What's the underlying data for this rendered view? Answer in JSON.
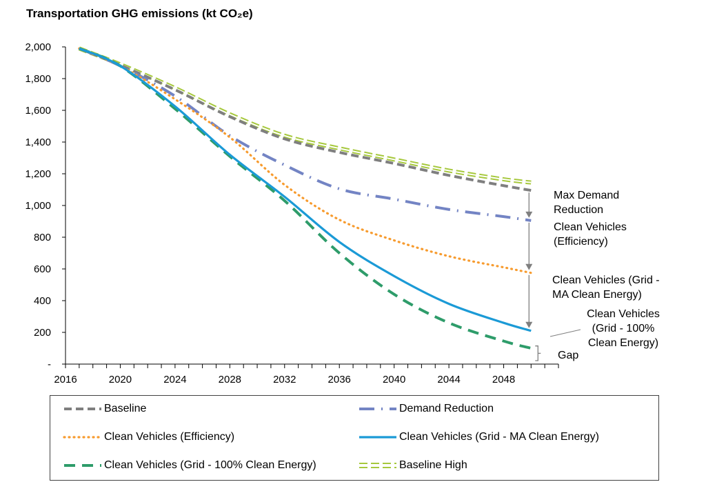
{
  "title": "Transportation GHG emissions (kt CO₂e)",
  "chart_data": {
    "type": "line",
    "title": "Transportation GHG emissions (kt CO₂e)",
    "xlim": [
      2016,
      2052
    ],
    "ylim": [
      0,
      2000
    ],
    "x_ticks": [
      "2016",
      "2020",
      "2024",
      "2028",
      "2032",
      "2036",
      "2040",
      "2044",
      "2048"
    ],
    "y_ticks": [
      "-",
      "200",
      "400",
      "600",
      "800",
      "1,000",
      "1,200",
      "1,400",
      "1,600",
      "1,800",
      "2,000"
    ],
    "grid": false,
    "legend_position": "bottom",
    "series": [
      {
        "name": "Baseline",
        "color": "#7f7f7f",
        "style": "dashed",
        "x": [
          2017,
          2020,
          2024,
          2028,
          2032,
          2036,
          2040,
          2044,
          2048,
          2050
        ],
        "y": [
          1990,
          1885,
          1730,
          1560,
          1420,
          1335,
          1265,
          1190,
          1125,
          1095
        ]
      },
      {
        "name": "Demand Reduction",
        "color": "#7384c4",
        "style": "dash-dot",
        "x": [
          2017,
          2020,
          2024,
          2028,
          2032,
          2036,
          2040,
          2044,
          2048,
          2050
        ],
        "y": [
          1990,
          1880,
          1690,
          1440,
          1255,
          1105,
          1040,
          975,
          930,
          905
        ]
      },
      {
        "name": "Clean Vehicles (Efficiency)",
        "color": "#f79b2e",
        "style": "dotted",
        "x": [
          2017,
          2020,
          2024,
          2028,
          2032,
          2036,
          2040,
          2044,
          2048,
          2050
        ],
        "y": [
          1990,
          1880,
          1670,
          1430,
          1130,
          910,
          780,
          680,
          610,
          575
        ]
      },
      {
        "name": "Clean Vehicles (Grid - MA Clean Energy)",
        "color": "#1b9ad6",
        "style": "solid",
        "x": [
          2017,
          2020,
          2024,
          2028,
          2032,
          2036,
          2040,
          2044,
          2048,
          2050
        ],
        "y": [
          1990,
          1880,
          1625,
          1320,
          1055,
          770,
          555,
          380,
          260,
          210
        ]
      },
      {
        "name": "Clean Vehicles (Grid - 100% Clean Energy)",
        "color": "#2e9c6a",
        "style": "dashed-long",
        "x": [
          2017,
          2020,
          2024,
          2028,
          2032,
          2036,
          2040,
          2044,
          2048,
          2050
        ],
        "y": [
          1990,
          1880,
          1610,
          1310,
          1030,
          700,
          440,
          260,
          145,
          100
        ]
      },
      {
        "name": "Baseline High",
        "color": "#a6c83c",
        "style": "double-dashed",
        "x": [
          2017,
          2020,
          2024,
          2028,
          2032,
          2036,
          2040,
          2044,
          2048,
          2050
        ],
        "y": [
          1990,
          1890,
          1740,
          1575,
          1440,
          1360,
          1290,
          1220,
          1165,
          1145
        ]
      }
    ],
    "annotations": [
      {
        "lines": [
          "Max Demand",
          "Reduction"
        ]
      },
      {
        "lines": [
          "Clean Vehicles",
          "(Efficiency)"
        ]
      },
      {
        "lines": [
          "Clean Vehicles (Grid -",
          "MA Clean Energy)"
        ]
      },
      {
        "lines": [
          "Clean Vehicles",
          "(Grid - 100%",
          "Clean Energy)"
        ]
      },
      {
        "lines": [
          "Gap"
        ]
      }
    ]
  }
}
